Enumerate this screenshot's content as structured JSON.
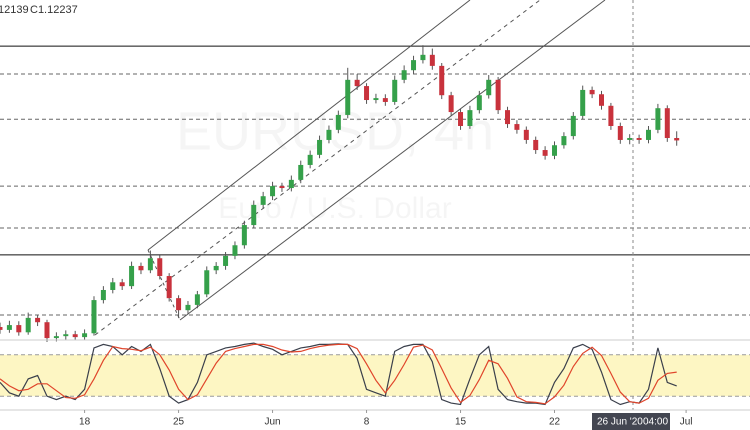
{
  "ohlc_fragment": "12139",
  "close_label": "C1.12237",
  "watermark": "EURUSD, 4h",
  "watermark_sub": "Euro / U.S. Dollar",
  "crosshair_date": "26 Jun '20",
  "crosshair_time": "04:00",
  "chart_data": [
    {
      "type": "candlestick",
      "up_color": "#35a04a",
      "down_color": "#c8323c",
      "xlim": [
        0,
        79.8
      ],
      "ylim": [
        1.0809,
        1.1516
      ],
      "xticks": [
        {
          "value": 9,
          "label": "18"
        },
        {
          "value": 19,
          "label": "25"
        },
        {
          "value": 29,
          "label": "Jun"
        },
        {
          "value": 39,
          "label": "8"
        },
        {
          "value": 49,
          "label": "15"
        },
        {
          "value": 59,
          "label": "22"
        },
        {
          "value": 73,
          "label": "Jul"
        }
      ],
      "levels": [
        {
          "value": 1.142,
          "style": "solid"
        },
        {
          "value": 1.1362,
          "style": "dashed"
        },
        {
          "value": 1.1268,
          "style": "dashed"
        },
        {
          "value": 1.1129,
          "style": "dashed"
        },
        {
          "value": 1.1042,
          "style": "dashed"
        },
        {
          "value": 1.0986,
          "style": "solid"
        },
        {
          "value": 1.0861,
          "style": "dashed"
        }
      ],
      "ohlc": [
        [
          1.0836,
          1.0845,
          1.0822,
          1.083
        ],
        [
          1.083,
          1.0849,
          1.0824,
          1.084
        ],
        [
          1.084,
          1.0848,
          1.0818,
          1.0825
        ],
        [
          1.0825,
          1.0866,
          1.082,
          1.0855
        ],
        [
          1.0855,
          1.086,
          1.0838,
          1.0846
        ],
        [
          1.0846,
          1.0851,
          1.0805,
          1.0813
        ],
        [
          1.0813,
          1.0825,
          1.0806,
          1.0817
        ],
        [
          1.0817,
          1.0829,
          1.081,
          1.0821
        ],
        [
          1.0821,
          1.0828,
          1.0809,
          1.0815
        ],
        [
          1.0815,
          1.0831,
          1.0808,
          1.0823
        ],
        [
          1.0823,
          1.09,
          1.0818,
          1.0892
        ],
        [
          1.0892,
          1.0921,
          1.0885,
          1.0913
        ],
        [
          1.0913,
          1.0938,
          1.0906,
          1.0929
        ],
        [
          1.0929,
          1.0936,
          1.0913,
          1.0921
        ],
        [
          1.0921,
          1.0972,
          1.0915,
          1.0963
        ],
        [
          1.0963,
          1.097,
          1.0946,
          1.0954
        ],
        [
          1.0954,
          1.0995,
          1.0948,
          1.0979
        ],
        [
          1.0979,
          1.0985,
          1.0935,
          1.0942
        ],
        [
          1.0942,
          1.0948,
          1.0889,
          1.0896
        ],
        [
          1.0896,
          1.0902,
          1.0855,
          1.0871
        ],
        [
          1.0871,
          1.089,
          1.0863,
          1.0882
        ],
        [
          1.0882,
          1.0911,
          1.0875,
          1.0904
        ],
        [
          1.0904,
          1.0962,
          1.0898,
          1.0954
        ],
        [
          1.0954,
          1.0971,
          1.0946,
          1.0963
        ],
        [
          1.0963,
          1.0992,
          1.0955,
          1.0984
        ],
        [
          1.0984,
          1.1014,
          1.0977,
          1.1006
        ],
        [
          1.1006,
          1.1057,
          1.0999,
          1.1048
        ],
        [
          1.1048,
          1.1099,
          1.1041,
          1.109
        ],
        [
          1.109,
          1.1117,
          1.1082,
          1.1108
        ],
        [
          1.1108,
          1.1138,
          1.11,
          1.1129
        ],
        [
          1.1129,
          1.1136,
          1.1117,
          1.1125
        ],
        [
          1.1125,
          1.1151,
          1.1118,
          1.1142
        ],
        [
          1.1142,
          1.1182,
          1.1135,
          1.1173
        ],
        [
          1.1173,
          1.1203,
          1.1166,
          1.1194
        ],
        [
          1.1194,
          1.1234,
          1.1187,
          1.1225
        ],
        [
          1.1225,
          1.1255,
          1.1218,
          1.1246
        ],
        [
          1.1246,
          1.1286,
          1.1239,
          1.1277
        ],
        [
          1.1277,
          1.1375,
          1.127,
          1.135
        ],
        [
          1.135,
          1.1362,
          1.1329,
          1.1337
        ],
        [
          1.1337,
          1.1343,
          1.13,
          1.1308
        ],
        [
          1.1308,
          1.1321,
          1.1301,
          1.1312
        ],
        [
          1.1312,
          1.132,
          1.1296,
          1.1304
        ],
        [
          1.1304,
          1.1359,
          1.1298,
          1.135
        ],
        [
          1.135,
          1.138,
          1.1343,
          1.137
        ],
        [
          1.137,
          1.14,
          1.1363,
          1.1391
        ],
        [
          1.1391,
          1.1422,
          1.1384,
          1.1402
        ],
        [
          1.1402,
          1.1415,
          1.1371,
          1.1379
        ],
        [
          1.1379,
          1.1385,
          1.131,
          1.1318
        ],
        [
          1.1318,
          1.1325,
          1.1275,
          1.1283
        ],
        [
          1.1283,
          1.129,
          1.1246,
          1.1254
        ],
        [
          1.1254,
          1.1296,
          1.1248,
          1.1287
        ],
        [
          1.1287,
          1.1327,
          1.128,
          1.1318
        ],
        [
          1.1318,
          1.136,
          1.1311,
          1.135
        ],
        [
          1.135,
          1.1356,
          1.1279,
          1.1287
        ],
        [
          1.1287,
          1.1294,
          1.125,
          1.1258
        ],
        [
          1.1258,
          1.1266,
          1.1238,
          1.1246
        ],
        [
          1.1246,
          1.1253,
          1.1217,
          1.1225
        ],
        [
          1.1225,
          1.1232,
          1.1196,
          1.1204
        ],
        [
          1.1204,
          1.1212,
          1.1184,
          1.1192
        ],
        [
          1.1192,
          1.1222,
          1.1185,
          1.1214
        ],
        [
          1.1214,
          1.1241,
          1.1207,
          1.1233
        ],
        [
          1.1233,
          1.1283,
          1.1226,
          1.1275
        ],
        [
          1.1275,
          1.1338,
          1.1268,
          1.1329
        ],
        [
          1.1329,
          1.1336,
          1.1312,
          1.132
        ],
        [
          1.132,
          1.1327,
          1.1288,
          1.1296
        ],
        [
          1.1296,
          1.1302,
          1.1246,
          1.1254
        ],
        [
          1.1254,
          1.1261,
          1.1217,
          1.1225
        ],
        [
          1.1225,
          1.1237,
          1.1216,
          1.1229
        ],
        [
          1.1229,
          1.1236,
          1.1217,
          1.1225
        ],
        [
          1.1225,
          1.1254,
          1.1218,
          1.1246
        ],
        [
          1.1246,
          1.13,
          1.1239,
          1.1291
        ],
        [
          1.1291,
          1.1297,
          1.1221,
          1.1229
        ],
        [
          1.1229,
          1.1243,
          1.1213,
          1.1224
        ]
      ]
    },
    {
      "type": "line",
      "ylim": [
        0,
        100
      ],
      "band": [
        20,
        80
      ],
      "band_color": "#fdf6c3",
      "series": [
        {
          "color": "#3a3f4b",
          "values": [
            40,
            25,
            20,
            45,
            50,
            20,
            15,
            20,
            15,
            30,
            90,
            95,
            92,
            80,
            92,
            85,
            95,
            60,
            20,
            10,
            15,
            40,
            80,
            85,
            90,
            92,
            95,
            97,
            92,
            88,
            80,
            85,
            90,
            92,
            95,
            95,
            96,
            95,
            75,
            30,
            25,
            20,
            85,
            92,
            95,
            95,
            70,
            15,
            10,
            8,
            45,
            80,
            92,
            30,
            15,
            12,
            10,
            10,
            8,
            40,
            60,
            90,
            95,
            88,
            55,
            15,
            8,
            12,
            10,
            30,
            90,
            40,
            35
          ]
        },
        {
          "color": "#e0452b",
          "values": [
            45,
            35,
            28,
            30,
            38,
            38,
            28,
            18,
            17,
            22,
            45,
            72,
            92,
            89,
            88,
            86,
            91,
            80,
            58,
            30,
            15,
            22,
            45,
            68,
            85,
            89,
            92,
            95,
            95,
            92,
            87,
            84,
            85,
            89,
            92,
            94,
            95,
            95,
            89,
            67,
            43,
            25,
            43,
            66,
            91,
            94,
            87,
            60,
            32,
            11,
            21,
            44,
            72,
            67,
            46,
            19,
            12,
            11,
            9,
            19,
            36,
            63,
            82,
            91,
            79,
            53,
            26,
            12,
            10,
            17,
            43,
            53,
            55
          ]
        }
      ]
    }
  ]
}
